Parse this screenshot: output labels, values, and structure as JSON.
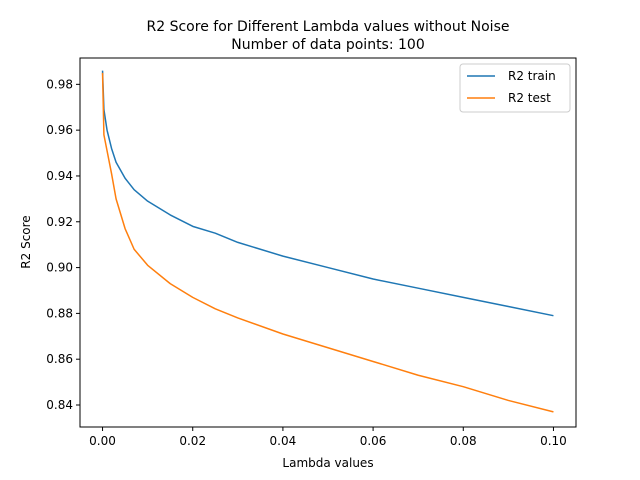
{
  "chart_data": {
    "type": "line",
    "title": "R2 Score for Different Lambda values without Noise",
    "subtitle": "Number of data points: 100",
    "xlabel": "Lambda values",
    "ylabel": "R2 Score",
    "xlim": [
      -0.005,
      0.105
    ],
    "ylim": [
      0.8304,
      0.9915
    ],
    "x_ticks": [
      0.0,
      0.02,
      0.04,
      0.06,
      0.08,
      0.1
    ],
    "x_tick_labels": [
      "0.00",
      "0.02",
      "0.04",
      "0.06",
      "0.08",
      "0.10"
    ],
    "y_ticks": [
      0.84,
      0.86,
      0.88,
      0.9,
      0.92,
      0.94,
      0.96,
      0.98
    ],
    "y_tick_labels": [
      "0.84",
      "0.86",
      "0.88",
      "0.90",
      "0.92",
      "0.94",
      "0.96",
      "0.98"
    ],
    "grid": false,
    "legend_position": "top-right",
    "x": [
      0.0,
      0.0003,
      0.001,
      0.002,
      0.003,
      0.005,
      0.007,
      0.01,
      0.015,
      0.02,
      0.025,
      0.03,
      0.04,
      0.05,
      0.06,
      0.07,
      0.08,
      0.09,
      0.1
    ],
    "series": [
      {
        "name": "R2 train",
        "color": "#1f77b4",
        "values": [
          0.986,
          0.969,
          0.96,
          0.952,
          0.946,
          0.939,
          0.934,
          0.929,
          0.923,
          0.918,
          0.915,
          0.911,
          0.905,
          0.9,
          0.895,
          0.891,
          0.887,
          0.883,
          0.879
        ]
      },
      {
        "name": "R2 test",
        "color": "#ff7f0e",
        "values": [
          0.985,
          0.958,
          0.951,
          0.941,
          0.93,
          0.917,
          0.908,
          0.901,
          0.893,
          0.887,
          0.882,
          0.878,
          0.871,
          0.865,
          0.859,
          0.853,
          0.848,
          0.842,
          0.837
        ]
      }
    ]
  }
}
